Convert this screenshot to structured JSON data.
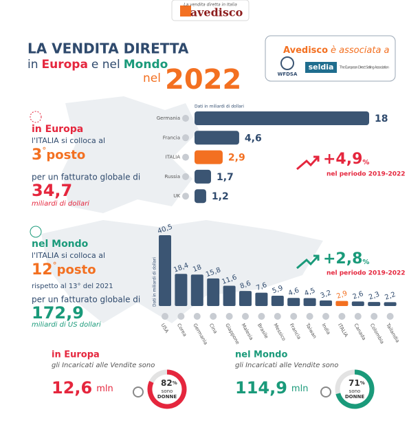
{
  "header": {
    "tagline": "La vendita diretta in Italia",
    "logo": "avedisco"
  },
  "title": {
    "line1": "LA VENDITA DIRETTA",
    "in": "in",
    "europa": "Europa",
    "e_nel": "e nel",
    "mondo": "Mondo",
    "nel": "nel",
    "year": "2022"
  },
  "association": {
    "name": "Avedisco",
    "text": "è associata a",
    "wfdsa": "WFDSA",
    "seldia": "seldia",
    "seldia_desc": "The European Direct Selling Association"
  },
  "europe": {
    "heading": "in Europa",
    "rank_text": "l'ITALIA si colloca al",
    "rank": 3,
    "degree": "°",
    "posto": "posto",
    "revenue_text": "per un fatturato globale di",
    "revenue": "34,7",
    "revenue_unit": "miliardi di dollari",
    "growth": "+4,9",
    "growth_unit": "%",
    "growth_period": "nel periodo 2019-2022"
  },
  "world": {
    "heading": "nel Mondo",
    "rank_text": "l'ITALIA si colloca al",
    "rank": 12,
    "degree": "°",
    "posto": "posto",
    "rank_note": "rispetto al 13° del 2021",
    "revenue_text": "per un fatturato globale di",
    "revenue": "172,9",
    "revenue_unit": "miliardi di US dollari",
    "growth": "+2,8",
    "growth_unit": "%",
    "growth_period": "nel periodo 2019-2022"
  },
  "chart_data": [
    {
      "type": "hbar",
      "axis_label": "Dati in miliardi di dollari",
      "categories": [
        "Germania",
        "Francia",
        "ITALIA",
        "Russia",
        "UK"
      ],
      "values": [
        18,
        4.6,
        2.9,
        1.7,
        1.2
      ],
      "value_labels": [
        "18",
        "4,6",
        "2,9",
        "1,7",
        "1,2"
      ],
      "colors": [
        "#3b5573",
        "#3b5573",
        "#f37021",
        "#3b5573",
        "#3b5573"
      ],
      "xlim": [
        0,
        18
      ]
    },
    {
      "type": "bar",
      "axis_label": "Dati in miliardi di dollari",
      "categories": [
        "USA",
        "Corea",
        "Germania",
        "Cina",
        "Giappone",
        "Malesia",
        "Brasile",
        "Messico",
        "Francia",
        "Taiwan",
        "India",
        "ITALIA",
        "Canada",
        "Colombia",
        "Tailandia"
      ],
      "values": [
        40.5,
        18.4,
        18,
        15.8,
        11.6,
        8.6,
        7.6,
        5.9,
        4.6,
        4.5,
        3.2,
        2.9,
        2.6,
        2.3,
        2.2
      ],
      "value_labels": [
        "40,5",
        "18,4",
        "18",
        "15,8",
        "11,6",
        "8,6",
        "7,6",
        "5,9",
        "4,6",
        "4,5",
        "3,2",
        "2,9",
        "2,6",
        "2,3",
        "2,2"
      ],
      "colors": [
        "#3b5573",
        "#3b5573",
        "#3b5573",
        "#3b5573",
        "#3b5573",
        "#3b5573",
        "#3b5573",
        "#3b5573",
        "#3b5573",
        "#3b5573",
        "#3b5573",
        "#f37021",
        "#3b5573",
        "#3b5573",
        "#3b5573"
      ],
      "ylim": [
        0,
        40.5
      ]
    }
  ],
  "sellers": [
    {
      "heading": "in Europa",
      "text": "gli Incaricati alle Vendite sono",
      "count": "12,6",
      "unit": "mln",
      "women_pct": 82,
      "pct_unit": "%",
      "women_1": "sono",
      "women_2": "DONNE"
    },
    {
      "heading": "nel Mondo",
      "text": "gli Incaricati alle Vendite sono",
      "count": "114,9",
      "unit": "mln",
      "women_pct": 71,
      "pct_unit": "%",
      "women_1": "sono",
      "women_2": "DONNE"
    }
  ]
}
